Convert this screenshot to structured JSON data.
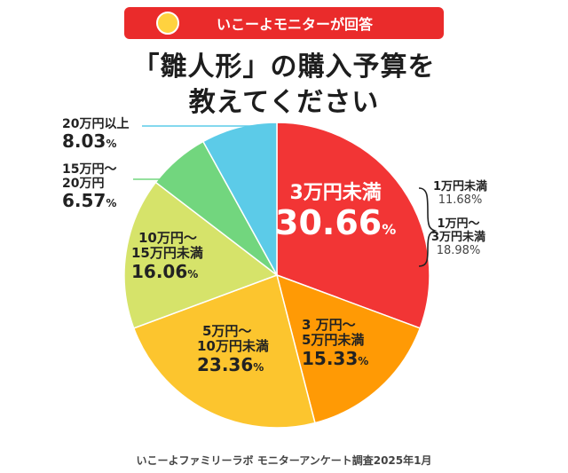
{
  "banner": {
    "text": "いこーよモニターが回答",
    "icon": "smiley-face-icon",
    "color": "#ea2b2b"
  },
  "title_lines": [
    "「雛人形」の購入予算を",
    "教えてください"
  ],
  "footer": "いこーよファミリーラボ モニターアンケート調査2025年1月",
  "chart_data": {
    "type": "pie",
    "start": "12 o'clock, clockwise",
    "slices": [
      {
        "label_lines": [
          "3万円未満"
        ],
        "value": 30.66,
        "value_text": "30.66",
        "color": "#f23535"
      },
      {
        "label_lines": [
          "3 万円～",
          "5万円未満"
        ],
        "value": 15.33,
        "value_text": "15.33",
        "color": "#ff9a05"
      },
      {
        "label_lines": [
          "5万円～",
          "10万円未満"
        ],
        "value": 23.36,
        "value_text": "23.36",
        "color": "#fcc52e"
      },
      {
        "label_lines": [
          "10万円～",
          "15万円未満"
        ],
        "value": 16.06,
        "value_text": "16.06",
        "color": "#d6e36a"
      },
      {
        "label_lines": [
          "15万円～",
          "20万円"
        ],
        "value": 6.57,
        "value_text": "6.57",
        "color": "#72d67e"
      },
      {
        "label_lines": [
          "20万円以上"
        ],
        "value": 8.03,
        "value_text": "8.03",
        "color": "#5ccbe8"
      }
    ],
    "breakdown": [
      {
        "label": "1万円未満",
        "value_text": "11.68%"
      },
      {
        "label_lines": [
          "1万円～",
          "3万円未満"
        ],
        "value_text": "18.98%"
      }
    ],
    "percent_sign": "%"
  }
}
